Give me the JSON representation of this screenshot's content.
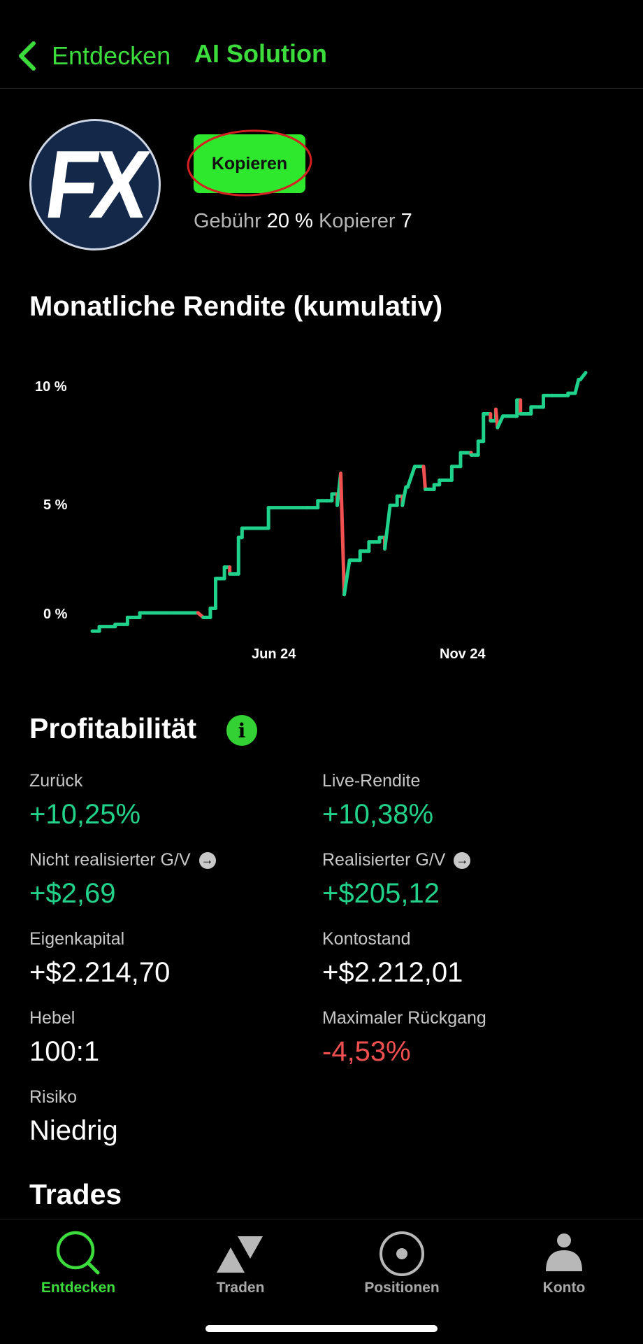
{
  "header": {
    "back_label": "Entdecken",
    "title": "AI Solution",
    "accent_color": "#3ddc3d"
  },
  "profile": {
    "avatar_text": "FX",
    "copy_button": "Kopieren",
    "fee_label": "Gebühr",
    "fee_value": "20 %",
    "copiers_label": "Kopierer",
    "copiers_value": "7"
  },
  "chart_section": {
    "title": "Monatliche Rendite (kumulativ)"
  },
  "chart_data": {
    "type": "line",
    "y_ticks": [
      "10 %",
      "5 %",
      "0 %"
    ],
    "x_ticks": [
      "Jun 24",
      "Nov 24"
    ],
    "ylim": [
      -0.8,
      11
    ],
    "up_color": "#1fd18a",
    "down_color": "#f05050",
    "points": [
      [
        0,
        -0.8
      ],
      [
        4,
        -0.8
      ],
      [
        4,
        -0.6
      ],
      [
        10,
        -0.6
      ],
      [
        13,
        -0.6
      ],
      [
        13,
        -0.5
      ],
      [
        20,
        -0.5
      ],
      [
        20,
        -0.2
      ],
      [
        27,
        -0.2
      ],
      [
        27,
        0
      ],
      [
        46,
        0
      ],
      [
        60,
        0
      ],
      [
        63,
        -0.2
      ],
      [
        63,
        -0.2
      ],
      [
        67,
        -0.2
      ],
      [
        67,
        0.2
      ],
      [
        70,
        0.2
      ],
      [
        70,
        1.5
      ],
      [
        75,
        1.5
      ],
      [
        75,
        2
      ],
      [
        78,
        2
      ],
      [
        78,
        1.7
      ],
      [
        83,
        1.7
      ],
      [
        83,
        3.3
      ],
      [
        85,
        3.3
      ],
      [
        85,
        3.7
      ],
      [
        100,
        3.7
      ],
      [
        100,
        4.6
      ],
      [
        122,
        4.6
      ],
      [
        122,
        4.6
      ],
      [
        128,
        4.6
      ],
      [
        128,
        4.9
      ],
      [
        133,
        4.9
      ],
      [
        133,
        4.9
      ],
      [
        136,
        4.9
      ],
      [
        136,
        5.2
      ],
      [
        139,
        5.2
      ],
      [
        139,
        4.7
      ],
      [
        141,
        6.1
      ],
      [
        143,
        0.8
      ],
      [
        146,
        2.3
      ],
      [
        152,
        2.3
      ],
      [
        152,
        2.7
      ],
      [
        157,
        2.7
      ],
      [
        157,
        3.1
      ],
      [
        163,
        3.1
      ],
      [
        163,
        3.3
      ],
      [
        166,
        3.3
      ],
      [
        166,
        2.8
      ],
      [
        169,
        4.7
      ],
      [
        173,
        4.7
      ],
      [
        173,
        5.1
      ],
      [
        176,
        5.1
      ],
      [
        176,
        4.7
      ],
      [
        178,
        5.5
      ],
      [
        179,
        5.5
      ],
      [
        183,
        6.4
      ],
      [
        188,
        6.4
      ],
      [
        189,
        5.4
      ],
      [
        194,
        5.4
      ],
      [
        194,
        5.6
      ],
      [
        197,
        5.6
      ],
      [
        197,
        5.8
      ],
      [
        204,
        5.8
      ],
      [
        204,
        6.4
      ],
      [
        209,
        6.4
      ],
      [
        209,
        7
      ],
      [
        215,
        7
      ],
      [
        215,
        6.9
      ],
      [
        219,
        6.9
      ],
      [
        219,
        7.5
      ],
      [
        222,
        7.5
      ],
      [
        222,
        8.7
      ],
      [
        226,
        8.7
      ],
      [
        226,
        8.4
      ],
      [
        229,
        8.4
      ],
      [
        229,
        8.9
      ],
      [
        230,
        8.1
      ],
      [
        233,
        8.6
      ],
      [
        241,
        8.6
      ],
      [
        241,
        9.3
      ],
      [
        243,
        9.3
      ],
      [
        243,
        8.7
      ],
      [
        249,
        8.7
      ],
      [
        249,
        9
      ],
      [
        256,
        9
      ],
      [
        256,
        9.5
      ],
      [
        261,
        9.5
      ],
      [
        261,
        9.5
      ],
      [
        270,
        9.5
      ],
      [
        270,
        9.6
      ],
      [
        274,
        9.6
      ],
      [
        276,
        10.2
      ],
      [
        277,
        10.2
      ],
      [
        280,
        10.5
      ]
    ]
  },
  "profitability": {
    "title": "Profitabilität",
    "stats": [
      {
        "label": "Zurück",
        "value": "+10,25%",
        "color": "green",
        "arrow": false
      },
      {
        "label": "Live-Rendite",
        "value": "+10,38%",
        "color": "green",
        "arrow": false
      },
      {
        "label": "Nicht realisierter G/V",
        "value": "+$2,69",
        "color": "green",
        "arrow": true
      },
      {
        "label": "Realisierter G/V",
        "value": "+$205,12",
        "color": "green",
        "arrow": true
      },
      {
        "label": "Eigenkapital",
        "value": "+$2.214,70",
        "color": "white",
        "arrow": false
      },
      {
        "label": "Kontostand",
        "value": "+$2.212,01",
        "color": "white",
        "arrow": false
      },
      {
        "label": "Hebel",
        "value": "100:1",
        "color": "white",
        "arrow": false
      },
      {
        "label": "Maximaler Rückgang",
        "value": "-4,53%",
        "color": "red",
        "arrow": false
      },
      {
        "label": "Risiko",
        "value": "Niedrig",
        "color": "white",
        "arrow": false
      }
    ]
  },
  "trades": {
    "title": "Trades"
  },
  "nav": [
    {
      "label": "Entdecken",
      "icon": "search-icon",
      "active": true
    },
    {
      "label": "Traden",
      "icon": "trade-triangles-icon",
      "active": false
    },
    {
      "label": "Positionen",
      "icon": "positions-target-icon",
      "active": false
    },
    {
      "label": "Konto",
      "icon": "account-person-icon",
      "active": false
    }
  ]
}
